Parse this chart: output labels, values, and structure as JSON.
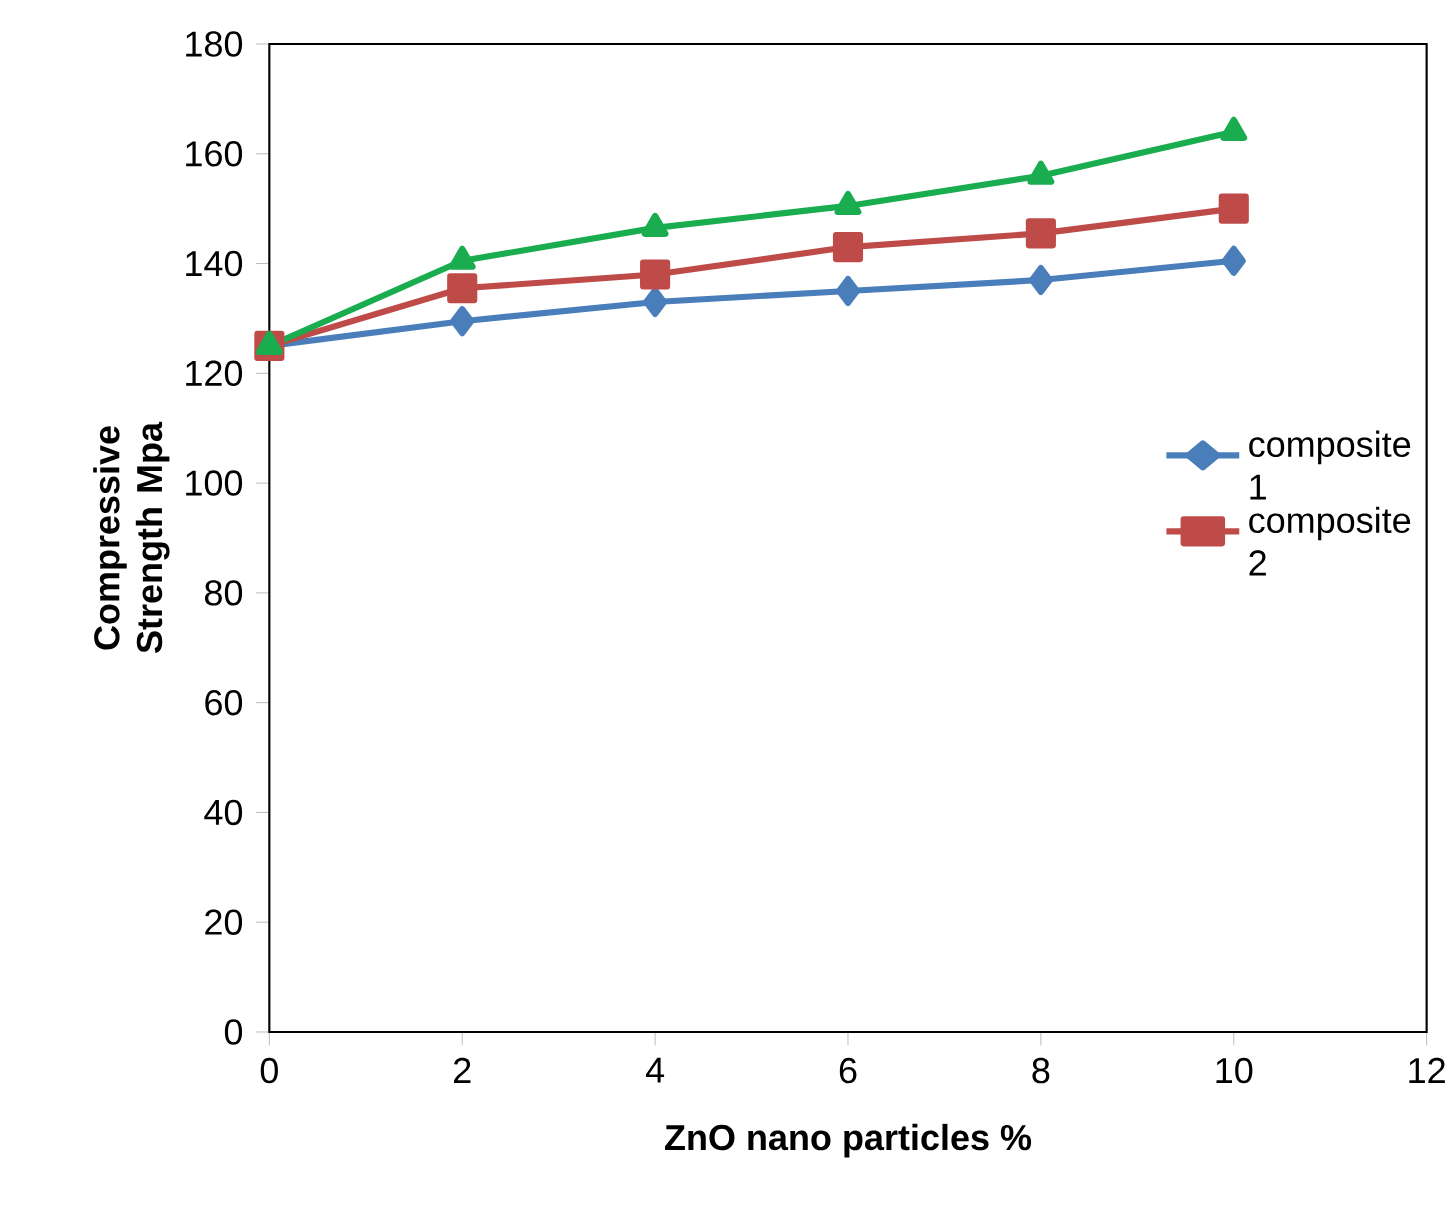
{
  "chart_data": {
    "type": "line",
    "xlabel": "ZnO nano particles %",
    "ylabel": "Compressive Strength Mpa",
    "x": [
      0,
      2,
      4,
      6,
      8,
      10
    ],
    "series": [
      {
        "name": "composite 1",
        "color": "#4a7ebb",
        "marker": "diamond",
        "values": [
          125,
          129.5,
          133,
          135,
          137,
          140.5
        ]
      },
      {
        "name": "composite 2",
        "color": "#be4b48",
        "marker": "square",
        "values": [
          125,
          135.5,
          138,
          143,
          145.5,
          150
        ]
      },
      {
        "color": "#1aad4f",
        "marker": "triangle",
        "values": [
          125,
          140.5,
          146.5,
          150.5,
          156,
          164
        ]
      }
    ],
    "xlim": [
      0,
      12
    ],
    "xticks": [
      0,
      2,
      4,
      6,
      8,
      10,
      12
    ],
    "ylim": [
      0,
      180
    ],
    "yticks": [
      0,
      20,
      40,
      60,
      80,
      100,
      120,
      140,
      160,
      180
    ],
    "grid": false,
    "legend": "right"
  }
}
